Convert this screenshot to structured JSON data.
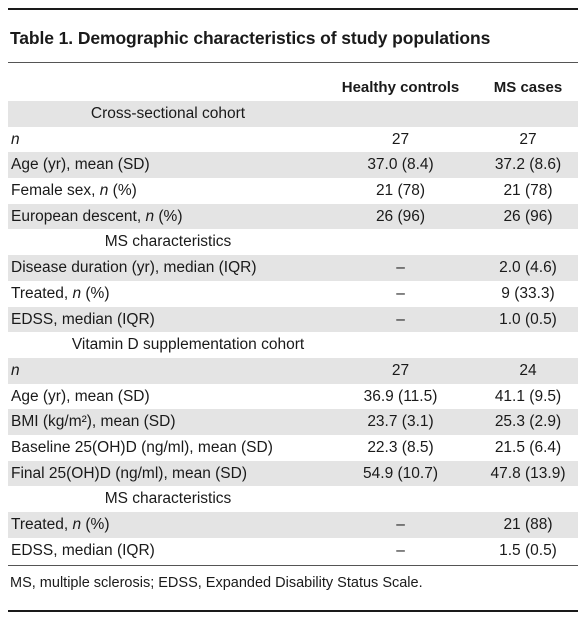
{
  "table": {
    "title": "Table 1. Demographic characteristics of study populations",
    "columns": [
      "Healthy controls",
      "MS cases"
    ],
    "rows": [
      {
        "type": "section",
        "label": "Cross-sectional cohort",
        "shaded": true
      },
      {
        "label": "n",
        "italic_n": true,
        "c1": "27",
        "c2": "27",
        "shaded": false
      },
      {
        "label": "Age (yr), mean (SD)",
        "c1": "37.0 (8.4)",
        "c2": "37.2 (8.6)",
        "shaded": true
      },
      {
        "label": "Female sex, n (%)",
        "c1": "21 (78)",
        "c2": "21 (78)",
        "shaded": false
      },
      {
        "label": "European descent, n (%)",
        "c1": "26 (96)",
        "c2": "26 (96)",
        "shaded": true
      },
      {
        "type": "section",
        "label": "MS characteristics",
        "shaded": false
      },
      {
        "label": "Disease duration (yr), median (IQR)",
        "c1": "–",
        "c2": "2.0 (4.6)",
        "shaded": true
      },
      {
        "label": "Treated, n (%)",
        "c1": "–",
        "c2": "9 (33.3)",
        "shaded": false
      },
      {
        "label": "EDSS, median (IQR)",
        "c1": "–",
        "c2": "1.0 (0.5)",
        "shaded": true
      },
      {
        "type": "section",
        "label": "Vitamin D supplementation cohort",
        "shaded": false,
        "wide": true
      },
      {
        "label": "n",
        "italic_n": true,
        "c1": "27",
        "c2": "24",
        "shaded": true
      },
      {
        "label": "Age (yr), mean (SD)",
        "c1": "36.9 (11.5)",
        "c2": "41.1 (9.5)",
        "shaded": false
      },
      {
        "label": "BMI (kg/m²), mean (SD)",
        "c1": "23.7 (3.1)",
        "c2": "25.3 (2.9)",
        "shaded": true
      },
      {
        "label": "Baseline 25(OH)D (ng/ml), mean (SD)",
        "c1": "22.3 (8.5)",
        "c2": "21.5 (6.4)",
        "shaded": false
      },
      {
        "label": "Final 25(OH)D (ng/ml), mean (SD)",
        "c1": "54.9 (10.7)",
        "c2": "47.8 (13.9)",
        "shaded": true
      },
      {
        "type": "section",
        "label": "MS characteristics",
        "shaded": false
      },
      {
        "label": "Treated, n (%)",
        "c1": "–",
        "c2": "21 (88)",
        "shaded": true
      },
      {
        "label": "EDSS, median (IQR)",
        "c1": "–",
        "c2": "1.5 (0.5)",
        "shaded": false
      }
    ],
    "footnote": "MS, multiple sclerosis; EDSS, Expanded Disability Status Scale."
  },
  "colors": {
    "shade": "#e4e4e4",
    "rule": "#1a1a1a"
  }
}
